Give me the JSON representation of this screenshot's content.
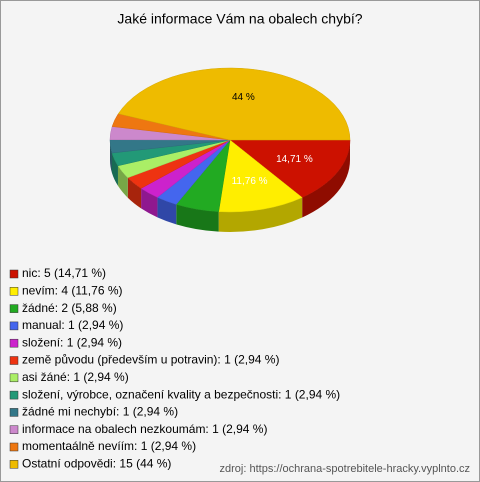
{
  "chart_data": {
    "type": "pie",
    "title": "Jaké informace Vám na obalech chybí?",
    "categories": [
      "nic: 5 (14,71 %)",
      "nevím: 4 (11,76 %)",
      "žádné: 2 (5,88 %)",
      "manual: 1 (2,94 %)",
      "složení: 1 (2,94 %)",
      "země původu (především u potravin): 1 (2,94 %)",
      "asi žáné: 1 (2,94 %)",
      "složení, výrobce, označení kvality a bezpečnosti: 1 (2,94 %)",
      "žádné mi nechybí: 1 (2,94 %)",
      "informace na obalech nezkoumám: 1 (2,94 %)",
      "momentaálně nevíím: 1 (2,94 %)",
      "Ostatní odpovědi: 15 (44 %)"
    ],
    "values": [
      14.71,
      11.76,
      5.88,
      2.94,
      2.94,
      2.94,
      2.94,
      2.94,
      2.94,
      2.94,
      2.94,
      44
    ],
    "value_labels": [
      "14,71 %",
      "11,76 %",
      null,
      null,
      null,
      null,
      null,
      null,
      null,
      null,
      null,
      "44 %"
    ],
    "colors": [
      "#cc1100",
      "#ffee00",
      "#22aa22",
      "#4466ee",
      "#cc22cc",
      "#ee3311",
      "#aaee66",
      "#229977",
      "#337788",
      "#cc88cc",
      "#ee7711",
      "#eebb00"
    ],
    "source": "zdroj: https://ochrana-spotrebitele-hracky.vyplnto.cz"
  }
}
